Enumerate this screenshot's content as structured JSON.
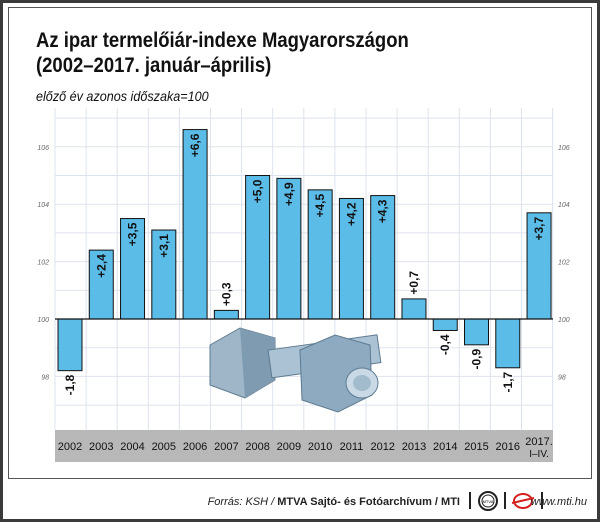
{
  "chart_data": {
    "type": "bar",
    "title": "Az ipar termelőiár-indexe Magyarországon (2002–2017. január–április)",
    "title_lines": [
      "Az ipar termelőiár-indexe Magyarországon",
      "(2002–2017. január–április)"
    ],
    "subtitle": "előző év azonos időszaka=100",
    "categories": [
      "2002",
      "2003",
      "2004",
      "2005",
      "2006",
      "2007",
      "2008",
      "2009",
      "2010",
      "2011",
      "2012",
      "2013",
      "2014",
      "2015",
      "2016",
      "2017. I–IV."
    ],
    "values": [
      98.2,
      102.4,
      103.5,
      103.1,
      106.6,
      100.3,
      105.0,
      104.9,
      104.5,
      104.2,
      104.3,
      100.7,
      99.6,
      99.1,
      98.3,
      103.7
    ],
    "data_labels": [
      "-1,8",
      "+2,4",
      "+3,5",
      "+3,1",
      "+6,6",
      "+0,3",
      "+5,0",
      "+4,9",
      "+4,5",
      "+4,2",
      "+4,3",
      "+0,7",
      "-0,4",
      "-0,9",
      "-1,7",
      "+3,7"
    ],
    "baseline": 100,
    "yticks": [
      "98",
      "100",
      "102",
      "104",
      "106"
    ],
    "ylim": [
      95.9,
      107.8
    ],
    "grid": true,
    "bar_color": "#5bbce8",
    "category_band_color": "#b8b8b8"
  },
  "footer": {
    "source_prefix": "Forrás: KSH / ",
    "source_bold": "MTVA Sajtó- és Fotóarchívum / MTI",
    "url": "www.mti.hu",
    "logo1": "MTVA"
  }
}
